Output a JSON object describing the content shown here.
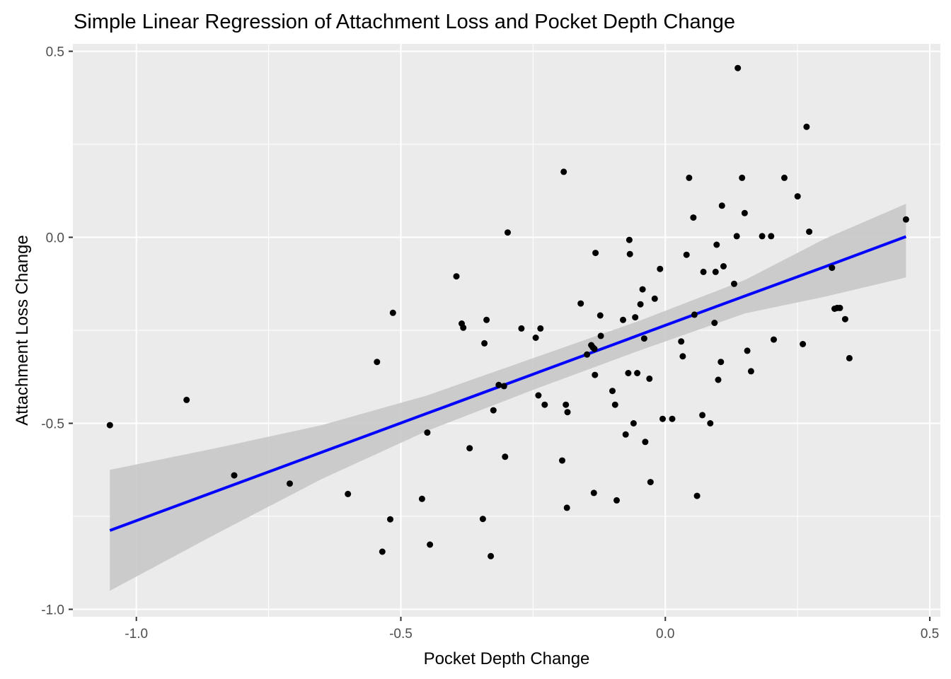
{
  "chart_data": {
    "type": "scatter",
    "title": "Simple Linear Regression of Attachment Loss and Pocket Depth Change",
    "xlabel": "Pocket Depth Change",
    "ylabel": "Attachment Loss Change",
    "xlim": [
      -1.12,
      0.52
    ],
    "ylim": [
      -1.02,
      0.52
    ],
    "x_ticks": [
      -1.0,
      -0.5,
      0.0,
      0.5
    ],
    "x_tick_labels": [
      "-1.0",
      "-0.5",
      "0.0",
      "0.5"
    ],
    "y_ticks": [
      -1.0,
      -0.5,
      0.0,
      0.5
    ],
    "y_tick_labels": [
      "-1.0",
      "-0.5",
      "0.0",
      "0.5"
    ],
    "grid": true,
    "colors": {
      "panel": "#ebebeb",
      "grid": "#ffffff",
      "points": "#000000",
      "line": "#0000ff",
      "band": "#c8c8c8"
    },
    "points": [
      [
        -1.05,
        -0.505
      ],
      [
        -0.905,
        -0.437
      ],
      [
        -0.815,
        -0.64
      ],
      [
        -0.71,
        -0.662
      ],
      [
        -0.6,
        -0.69
      ],
      [
        -0.545,
        -0.335
      ],
      [
        -0.535,
        -0.845
      ],
      [
        -0.52,
        -0.758
      ],
      [
        -0.515,
        -0.203
      ],
      [
        -0.46,
        -0.703
      ],
      [
        -0.45,
        -0.525
      ],
      [
        -0.445,
        -0.826
      ],
      [
        -0.395,
        -0.105
      ],
      [
        -0.385,
        -0.232
      ],
      [
        -0.382,
        -0.243
      ],
      [
        -0.37,
        -0.567
      ],
      [
        -0.345,
        -0.757
      ],
      [
        -0.342,
        -0.285
      ],
      [
        -0.338,
        -0.222
      ],
      [
        -0.33,
        -0.857
      ],
      [
        -0.325,
        -0.465
      ],
      [
        -0.315,
        -0.397
      ],
      [
        -0.305,
        -0.4
      ],
      [
        -0.303,
        -0.59
      ],
      [
        -0.298,
        0.013
      ],
      [
        -0.272,
        -0.245
      ],
      [
        -0.245,
        -0.27
      ],
      [
        -0.24,
        -0.425
      ],
      [
        -0.236,
        -0.245
      ],
      [
        -0.228,
        -0.45
      ],
      [
        -0.195,
        -0.6
      ],
      [
        -0.192,
        0.176
      ],
      [
        -0.188,
        -0.45
      ],
      [
        -0.186,
        -0.727
      ],
      [
        -0.185,
        -0.47
      ],
      [
        -0.16,
        -0.178
      ],
      [
        -0.148,
        -0.315
      ],
      [
        -0.14,
        -0.29
      ],
      [
        -0.137,
        -0.296
      ],
      [
        -0.135,
        -0.687
      ],
      [
        -0.134,
        -0.3
      ],
      [
        -0.133,
        -0.37
      ],
      [
        -0.132,
        -0.042
      ],
      [
        -0.123,
        -0.21
      ],
      [
        -0.122,
        -0.265
      ],
      [
        -0.1,
        -0.413
      ],
      [
        -0.095,
        -0.45
      ],
      [
        -0.092,
        -0.707
      ],
      [
        -0.08,
        -0.222
      ],
      [
        -0.075,
        -0.53
      ],
      [
        -0.07,
        -0.365
      ],
      [
        -0.068,
        -0.007
      ],
      [
        -0.067,
        -0.045
      ],
      [
        -0.06,
        -0.5
      ],
      [
        -0.057,
        -0.215
      ],
      [
        -0.053,
        -0.365
      ],
      [
        -0.047,
        -0.18
      ],
      [
        -0.043,
        -0.14
      ],
      [
        -0.04,
        -0.272
      ],
      [
        -0.038,
        -0.55
      ],
      [
        -0.03,
        -0.38
      ],
      [
        -0.028,
        -0.658
      ],
      [
        -0.02,
        -0.165
      ],
      [
        -0.01,
        -0.085
      ],
      [
        -0.005,
        -0.488
      ],
      [
        0.013,
        -0.488
      ],
      [
        0.03,
        -0.28
      ],
      [
        0.033,
        -0.32
      ],
      [
        0.04,
        -0.047
      ],
      [
        0.045,
        0.16
      ],
      [
        0.053,
        0.053
      ],
      [
        0.055,
        -0.208
      ],
      [
        0.06,
        -0.695
      ],
      [
        0.07,
        -0.478
      ],
      [
        0.072,
        -0.093
      ],
      [
        0.085,
        -0.5
      ],
      [
        0.093,
        -0.23
      ],
      [
        0.095,
        -0.093
      ],
      [
        0.097,
        -0.02
      ],
      [
        0.1,
        -0.383
      ],
      [
        0.105,
        -0.335
      ],
      [
        0.107,
        0.085
      ],
      [
        0.11,
        -0.078
      ],
      [
        0.13,
        -0.125
      ],
      [
        0.135,
        0.003
      ],
      [
        0.137,
        0.455
      ],
      [
        0.145,
        0.16
      ],
      [
        0.15,
        0.065
      ],
      [
        0.155,
        -0.305
      ],
      [
        0.162,
        -0.36
      ],
      [
        0.183,
        0.003
      ],
      [
        0.2,
        0.003
      ],
      [
        0.205,
        -0.275
      ],
      [
        0.225,
        0.16
      ],
      [
        0.25,
        0.11
      ],
      [
        0.26,
        -0.287
      ],
      [
        0.267,
        0.297
      ],
      [
        0.272,
        0.015
      ],
      [
        0.315,
        -0.082
      ],
      [
        0.32,
        -0.192
      ],
      [
        0.325,
        -0.19
      ],
      [
        0.33,
        -0.19
      ],
      [
        0.34,
        -0.22
      ],
      [
        0.348,
        -0.325
      ],
      [
        0.455,
        0.048
      ]
    ],
    "regression": {
      "x": [
        -1.05,
        -0.85,
        -0.65,
        -0.45,
        -0.25,
        -0.05,
        0.15,
        0.3,
        0.455
      ],
      "fit": [
        -0.788,
        -0.683,
        -0.578,
        -0.473,
        -0.368,
        -0.263,
        -0.158,
        -0.08,
        0.002
      ],
      "lower": [
        -0.95,
        -0.798,
        -0.65,
        -0.52,
        -0.41,
        -0.305,
        -0.205,
        -0.16,
        -0.108
      ],
      "upper": [
        -0.625,
        -0.567,
        -0.505,
        -0.425,
        -0.325,
        -0.225,
        -0.115,
        -0.005,
        0.09
      ]
    }
  }
}
